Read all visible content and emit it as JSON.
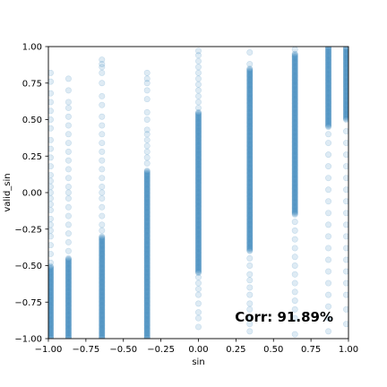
{
  "chart_data": {
    "type": "scatter",
    "title": "",
    "xlabel": "sin",
    "ylabel": "valid_sin",
    "xlim": [
      -1.0,
      1.0
    ],
    "ylim": [
      -1.0,
      1.0
    ],
    "xticks": [
      "−1.00",
      "−0.75",
      "−0.50",
      "−0.25",
      "0.00",
      "0.25",
      "0.50",
      "0.75",
      "1.00"
    ],
    "yticks": [
      "−1.00",
      "−0.75",
      "−0.50",
      "−0.25",
      "0.00",
      "0.25",
      "0.50",
      "0.75",
      "1.00"
    ],
    "grid": false,
    "marker_color": "#1f77b4",
    "marker_alpha": 0.15,
    "annotation": "Corr: 91.89%",
    "annotation_position": "bottom-right",
    "columns": [
      {
        "x": -0.985,
        "solid_range": [
          -1.0,
          -0.5
        ],
        "points": [
          -0.48,
          -0.42,
          -0.36,
          -0.3,
          -0.26,
          -0.22,
          -0.18,
          -0.12,
          -0.08,
          -0.04,
          0.0,
          0.04,
          0.08,
          0.12,
          0.18,
          0.24,
          0.3,
          0.36,
          0.44,
          0.5,
          0.56,
          0.62,
          0.68,
          0.76,
          0.82
        ]
      },
      {
        "x": -0.866,
        "solid_range": [
          -1.0,
          -0.45
        ],
        "points": [
          -0.4,
          -0.34,
          -0.28,
          -0.22,
          -0.16,
          -0.1,
          -0.04,
          0.0,
          0.04,
          0.1,
          0.16,
          0.22,
          0.28,
          0.34,
          0.4,
          0.46,
          0.52,
          0.58,
          0.62,
          0.7,
          0.78
        ]
      },
      {
        "x": -0.643,
        "solid_range": [
          -1.0,
          -0.3
        ],
        "points": [
          -0.26,
          -0.22,
          -0.16,
          -0.1,
          -0.04,
          0.0,
          0.04,
          0.1,
          0.16,
          0.22,
          0.28,
          0.34,
          0.4,
          0.46,
          0.52,
          0.6,
          0.66,
          0.75,
          0.82,
          0.86,
          0.88,
          0.91
        ]
      },
      {
        "x": -0.342,
        "solid_range": [
          -1.0,
          0.15
        ],
        "points": [
          0.2,
          0.24,
          0.28,
          0.32,
          0.36,
          0.4,
          0.43,
          0.5,
          0.55,
          0.64,
          0.7,
          0.75,
          0.78,
          0.82
        ]
      },
      {
        "x": 0.0,
        "solid_range": [
          -0.55,
          0.55
        ],
        "points": [
          -0.92,
          -0.86,
          -0.82,
          -0.76,
          -0.7,
          -0.66,
          -0.62,
          -0.58,
          0.58,
          0.62,
          0.66,
          0.7,
          0.74,
          0.78,
          0.82,
          0.86,
          0.9,
          0.94,
          0.97
        ]
      },
      {
        "x": 0.342,
        "solid_range": [
          -0.4,
          0.85
        ],
        "points": [
          -0.95,
          -0.9,
          -0.86,
          -0.8,
          -0.76,
          -0.7,
          -0.65,
          -0.6,
          -0.56,
          -0.5,
          -0.45,
          0.88,
          0.96
        ]
      },
      {
        "x": 0.643,
        "solid_range": [
          -0.15,
          0.95
        ],
        "points": [
          -0.97,
          -0.86,
          -0.8,
          -0.74,
          -0.68,
          -0.62,
          -0.56,
          -0.5,
          -0.44,
          -0.38,
          -0.32,
          -0.26,
          -0.2,
          0.98
        ]
      },
      {
        "x": 0.866,
        "solid_range": [
          0.45,
          1.0
        ],
        "points": [
          -0.95,
          -0.86,
          -0.78,
          -0.7,
          -0.62,
          -0.54,
          -0.46,
          -0.38,
          -0.3,
          -0.22,
          -0.14,
          -0.06,
          0.02,
          0.1,
          0.18,
          0.26,
          0.34,
          0.4
        ]
      },
      {
        "x": 0.985,
        "solid_range": [
          0.5,
          1.0
        ],
        "points": [
          -0.9,
          -0.8,
          -0.7,
          -0.62,
          -0.54,
          -0.46,
          -0.38,
          -0.3,
          -0.22,
          -0.14,
          -0.06,
          0.02,
          0.1,
          0.18,
          0.26,
          0.34,
          0.42
        ]
      }
    ]
  }
}
